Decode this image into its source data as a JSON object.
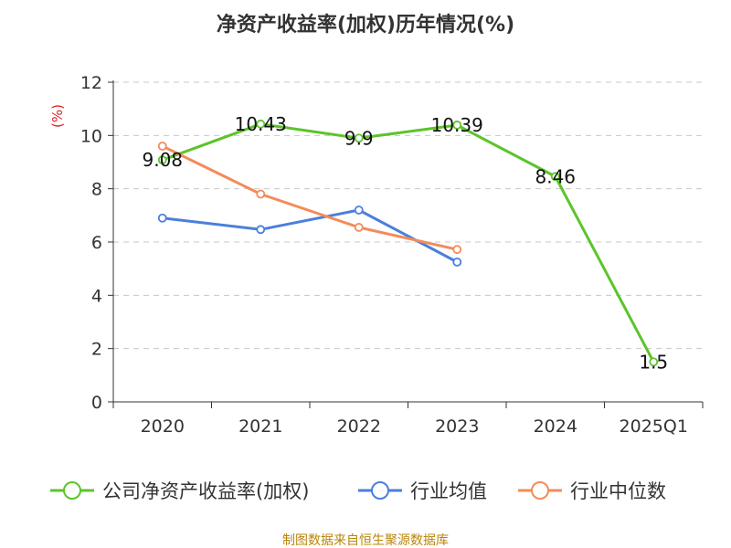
{
  "chart_data": {
    "type": "line",
    "title": "净资产收益率(加权)历年情况(%)",
    "ylabel": "(%)",
    "xlabel": "",
    "ylim": [
      0,
      12
    ],
    "yticks": [
      0,
      2,
      4,
      6,
      8,
      10,
      12
    ],
    "categories": [
      "2020",
      "2021",
      "2022",
      "2023",
      "2024",
      "2025Q1"
    ],
    "grid": true,
    "legend_position": "bottom",
    "series": [
      {
        "name": "公司净资产收益率(加权)",
        "color": "#5cc42a",
        "values": [
          9.08,
          10.43,
          9.9,
          10.39,
          8.46,
          1.5
        ],
        "labels": [
          "9.08",
          "10.43",
          "9.9",
          "10.39",
          "8.46",
          "1.5"
        ]
      },
      {
        "name": "行业均值",
        "color": "#4b7fdc",
        "values": [
          6.9,
          6.47,
          7.2,
          5.25,
          null,
          null
        ]
      },
      {
        "name": "行业中位数",
        "color": "#f38b5a",
        "values": [
          9.6,
          7.8,
          6.55,
          5.72,
          null,
          null
        ]
      }
    ],
    "source": "制图数据来自恒生聚源数据库"
  },
  "colors": {
    "ylabel": "#e0201e",
    "grid": "#c8c8c8",
    "axis": "#333333",
    "footer": "#b8860b"
  }
}
